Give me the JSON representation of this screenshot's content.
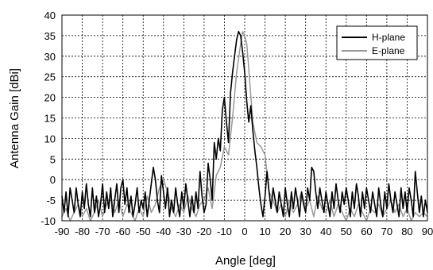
{
  "chart_data": {
    "type": "line",
    "title": "",
    "xlabel": "Angle [deg]",
    "ylabel": "Antenna Gain [dBi]",
    "xlim": [
      -90,
      90
    ],
    "ylim": [
      -10,
      40
    ],
    "x_ticks": [
      -90,
      -80,
      -70,
      -60,
      -50,
      -40,
      -30,
      -20,
      -10,
      0,
      10,
      20,
      30,
      40,
      50,
      60,
      70,
      80,
      90
    ],
    "y_ticks": [
      -10,
      -5,
      0,
      5,
      10,
      15,
      20,
      25,
      30,
      35,
      40
    ],
    "grid": "dotted",
    "legend_position": "top-right",
    "series": [
      {
        "name": "H-plane",
        "color": "#000000",
        "x": [
          -90,
          -89,
          -88,
          -87,
          -86,
          -85,
          -84,
          -83,
          -82,
          -81,
          -80,
          -79,
          -78,
          -77,
          -76,
          -75,
          -74,
          -73,
          -72,
          -71,
          -70,
          -69,
          -68,
          -67,
          -66,
          -65,
          -64,
          -63,
          -62,
          -61,
          -60,
          -59,
          -58,
          -57,
          -56,
          -55,
          -54,
          -53,
          -52,
          -51,
          -50,
          -49,
          -48,
          -47,
          -46,
          -45,
          -44,
          -43,
          -42,
          -41,
          -40,
          -39,
          -38,
          -37,
          -36,
          -35,
          -34,
          -33,
          -32,
          -31,
          -30,
          -29,
          -28,
          -27,
          -26,
          -25,
          -24,
          -23,
          -22,
          -21,
          -20,
          -19,
          -18,
          -17,
          -16,
          -15,
          -14,
          -13,
          -12,
          -11,
          -10,
          -9,
          -8,
          -7,
          -6,
          -5,
          -4,
          -3,
          -2,
          -1,
          0,
          1,
          2,
          3,
          4,
          5,
          6,
          7,
          8,
          9,
          10,
          11,
          12,
          13,
          14,
          15,
          16,
          17,
          18,
          19,
          20,
          21,
          22,
          23,
          24,
          25,
          26,
          27,
          28,
          29,
          30,
          31,
          32,
          33,
          34,
          35,
          36,
          37,
          38,
          39,
          40,
          41,
          42,
          43,
          44,
          45,
          46,
          47,
          48,
          49,
          50,
          51,
          52,
          53,
          54,
          55,
          56,
          57,
          58,
          59,
          60,
          61,
          62,
          63,
          64,
          65,
          66,
          67,
          68,
          69,
          70,
          71,
          72,
          73,
          74,
          75,
          76,
          77,
          78,
          79,
          80,
          81,
          82,
          83,
          84,
          85,
          86,
          87,
          88,
          89,
          90
        ],
        "y": [
          -4,
          -8,
          -3,
          -9,
          -2,
          -5,
          -8,
          -2,
          -6,
          -9,
          -3,
          -7,
          -1,
          -6,
          -9,
          -2,
          -8,
          -4,
          -9,
          -6,
          -1,
          -8,
          -3,
          -7,
          -2,
          -9,
          -5,
          -1,
          -8,
          -2,
          0,
          -6,
          -2,
          -8,
          -4,
          -9,
          -6,
          -2,
          -8,
          -5,
          -7,
          -3,
          -9,
          -5,
          -1,
          3,
          0,
          -5,
          -8,
          1,
          -3,
          -7,
          -2,
          -9,
          -5,
          -8,
          -2,
          -6,
          -9,
          -3,
          -7,
          -1,
          -5,
          -9,
          -4,
          -8,
          -3,
          -7,
          2,
          -4,
          -8,
          -6,
          4,
          0,
          -5,
          9,
          5,
          10,
          7,
          17,
          20,
          14,
          9,
          21,
          26,
          30,
          34,
          36,
          35,
          31,
          26,
          19,
          14,
          18,
          12,
          7,
          3,
          -2,
          -6,
          -9,
          -4,
          2,
          -3,
          -7,
          -2,
          -5,
          -8,
          -3,
          -6,
          -9,
          -2,
          -6,
          -9,
          -3,
          -7,
          -2,
          -5,
          -9,
          -3,
          -6,
          -8,
          -2,
          -5,
          3,
          2,
          -3,
          -7,
          -2,
          -5,
          -8,
          -3,
          -6,
          -9,
          -3,
          -7,
          -1,
          -5,
          -8,
          -3,
          -6,
          -2,
          -5,
          -9,
          -3,
          -7,
          -1,
          -4,
          -9,
          -3,
          -7,
          -2,
          -5,
          -8,
          -3,
          -6,
          -9,
          -2,
          -6,
          -9,
          -3,
          -7,
          -1,
          -5,
          -8,
          -3,
          -6,
          -9,
          -2,
          -7,
          -3,
          -8,
          -2,
          -5,
          -9,
          2,
          -3,
          -8,
          -4,
          -9,
          -5,
          -8
        ]
      },
      {
        "name": "E-plane",
        "color": "#999999",
        "x": [
          -90,
          -88,
          -86,
          -84,
          -82,
          -80,
          -78,
          -76,
          -74,
          -72,
          -70,
          -68,
          -66,
          -64,
          -62,
          -60,
          -58,
          -56,
          -54,
          -52,
          -50,
          -48,
          -46,
          -44,
          -42,
          -40,
          -38,
          -36,
          -34,
          -32,
          -30,
          -28,
          -26,
          -24,
          -22,
          -20,
          -18,
          -16,
          -14,
          -12,
          -10,
          -8,
          -6,
          -4,
          -2,
          -1,
          0,
          1,
          2,
          4,
          6,
          8,
          10,
          12,
          14,
          16,
          18,
          20,
          22,
          24,
          26,
          28,
          30,
          32,
          34,
          36,
          38,
          40,
          42,
          44,
          46,
          48,
          50,
          52,
          54,
          56,
          58,
          60,
          62,
          64,
          66,
          68,
          70,
          72,
          74,
          76,
          78,
          80,
          82,
          84,
          86,
          88,
          90
        ],
        "y": [
          -9,
          -7,
          -10,
          -8,
          -6,
          -9,
          -7,
          -10,
          -8,
          -5,
          -9,
          -6,
          -4,
          -8,
          -5,
          -9,
          -6,
          -8,
          -10,
          -7,
          -9,
          -4,
          -8,
          -6,
          -2,
          0,
          -3,
          -7,
          -9,
          -6,
          -8,
          -4,
          -7,
          -9,
          -6,
          -5,
          -2,
          -7,
          1,
          3,
          8,
          6,
          15,
          26,
          33,
          36,
          35,
          33,
          27,
          14,
          9,
          8,
          6,
          -3,
          -5,
          -8,
          -6,
          -9,
          -5,
          -8,
          -6,
          -3,
          -7,
          -5,
          -9,
          -4,
          -7,
          -8,
          -5,
          -9,
          -6,
          -8,
          -10,
          -7,
          -9,
          -6,
          -8,
          -10,
          -7,
          -8,
          -6,
          -9,
          -7,
          -5,
          -8,
          -6,
          -9,
          -7,
          -10,
          -8,
          -9,
          -8,
          -9
        ]
      }
    ]
  }
}
